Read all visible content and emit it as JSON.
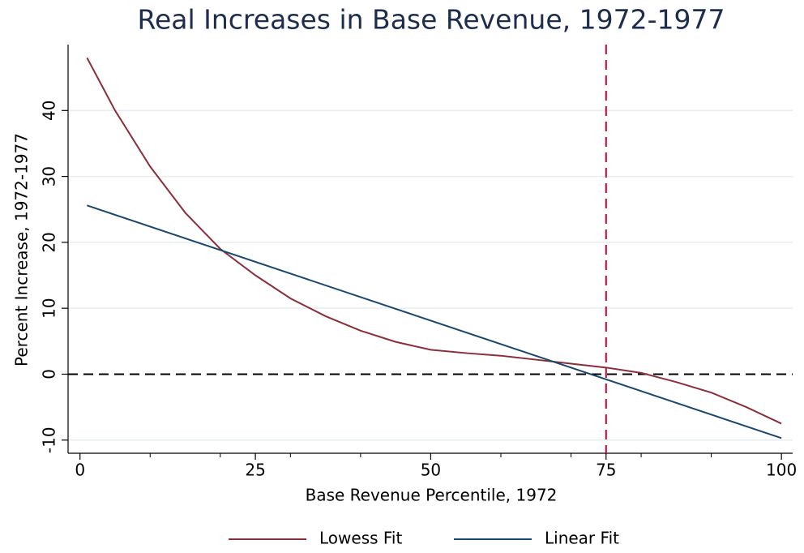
{
  "chart_data": {
    "type": "line",
    "title": "Real Increases in Base Revenue, 1972-1977",
    "x_label": "Base Revenue Percentile, 1972",
    "y_label": "Percent Increase, 1972-1977",
    "series": [
      {
        "name": "Lowess Fit",
        "color": "#8b2e3a",
        "x": [
          1,
          5,
          10,
          15,
          20,
          25,
          30,
          35,
          40,
          45,
          50,
          55,
          60,
          65,
          70,
          75,
          80,
          85,
          90,
          95,
          100
        ],
        "values": [
          48,
          40,
          31.5,
          24.5,
          19,
          15,
          11.5,
          8.8,
          6.6,
          4.9,
          3.7,
          3.2,
          2.8,
          2.2,
          1.6,
          1.0,
          0.2,
          -1.2,
          -2.8,
          -5,
          -7.5
        ]
      },
      {
        "name": "Linear Fit",
        "color": "#1a476f",
        "x": [
          1,
          100
        ],
        "values": [
          25.6,
          -9.7
        ]
      }
    ],
    "xlim": [
      -1.7,
      101.6
    ],
    "ylim": [
      -12,
      50
    ],
    "xticks": [
      0,
      25,
      50,
      75,
      100
    ],
    "xminor_ticks": [
      10,
      20,
      30,
      40,
      60,
      70,
      80,
      90
    ],
    "yticks": [
      -10,
      0,
      10,
      20,
      30,
      40
    ],
    "grid": true,
    "xline": {
      "value": 75,
      "color": "#c10534"
    },
    "yline": {
      "value": 0,
      "color": "#000000"
    },
    "legend": "bottom"
  }
}
